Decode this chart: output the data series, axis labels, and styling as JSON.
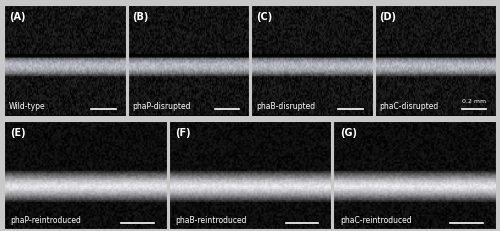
{
  "figure_width": 5.0,
  "figure_height": 2.31,
  "dpi": 100,
  "background_color": "#c8c8c8",
  "panels": [
    {
      "label": "(A)",
      "sublabel": "Wild-type",
      "row": 0,
      "col": 0
    },
    {
      "label": "(B)",
      "sublabel": "phaP-disrupted",
      "row": 0,
      "col": 1
    },
    {
      "label": "(C)",
      "sublabel": "phaB-disrupted",
      "row": 0,
      "col": 2
    },
    {
      "label": "(D)",
      "sublabel": "phaC-disrupted",
      "row": 0,
      "col": 3
    },
    {
      "label": "(E)",
      "sublabel": "phaP-reintroduced",
      "row": 1,
      "col": 0
    },
    {
      "label": "(F)",
      "sublabel": "phaB-reintroduced",
      "row": 1,
      "col": 1
    },
    {
      "label": "(G)",
      "sublabel": "phaC-reintroduced",
      "row": 1,
      "col": 2
    }
  ],
  "scale_bar_text": "0.2 mm",
  "panel_bg": "#000000",
  "text_color": "#ffffff",
  "border_color": "#c8c8c8",
  "label_fontsize": 7,
  "sublabel_fontsize": 5.5,
  "scalebar_fontsize": 4.5,
  "top_row_image_colors": [
    [
      "#1a2a2a",
      "#3a5a5a",
      "#6a8a8a",
      "#2a3a3a"
    ],
    [
      "#1a2a2a",
      "#3a5050",
      "#6a8a8a",
      "#2a3a3a"
    ],
    [
      "#1a2a2a",
      "#4a6a6a",
      "#8aaaaa",
      "#2a3a3a"
    ],
    [
      "#1a2a2a",
      "#3a4a4a",
      "#5a7a7a",
      "#2a3a3a"
    ]
  ],
  "bottom_row_image_colors": [
    [
      "#1a2a2a",
      "#4a6060",
      "#aaaaaa",
      "#2a3a3a"
    ],
    [
      "#1a2a2a",
      "#5a7070",
      "#b0b0b0",
      "#2a3a3a"
    ],
    [
      "#1a2a2a",
      "#6a8080",
      "#c0c0c0",
      "#2a3a3a"
    ]
  ]
}
